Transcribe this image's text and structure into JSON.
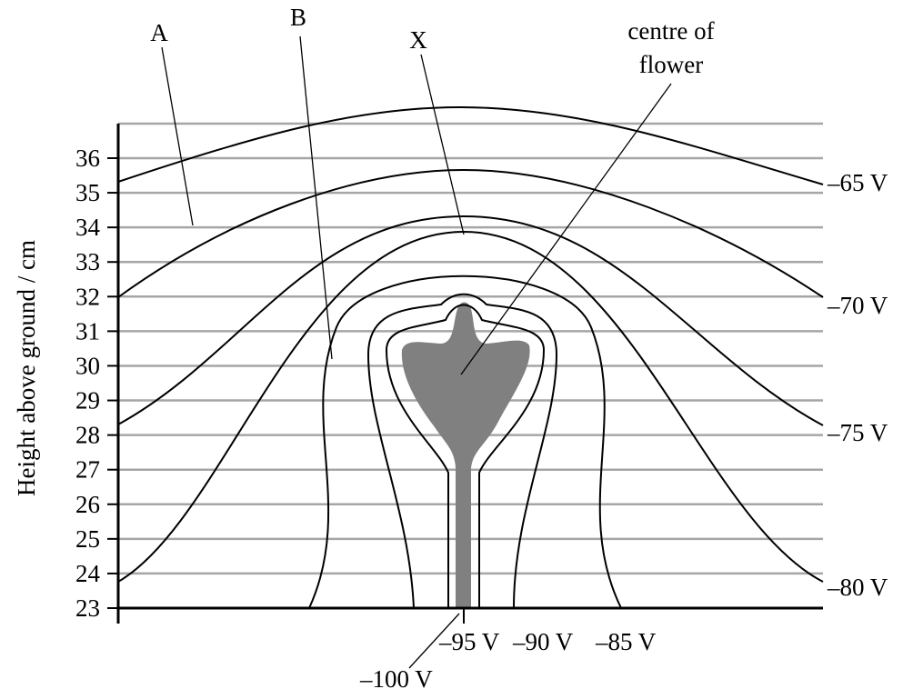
{
  "axis": {
    "label": "Height above ground / cm",
    "ticks": [
      23,
      24,
      25,
      26,
      27,
      28,
      29,
      30,
      31,
      32,
      33,
      34,
      35,
      36
    ]
  },
  "labels": {
    "a": "A",
    "b": "B",
    "x": "X",
    "centre": [
      "centre of",
      "flower"
    ]
  },
  "contours": {
    "v65": "–65 V",
    "v70": "–70 V",
    "v75": "–75 V",
    "v80": "–80 V",
    "v85": "–85 V",
    "v90": "–90 V",
    "v95": "–95 V",
    "v100": "–100 V"
  }
}
